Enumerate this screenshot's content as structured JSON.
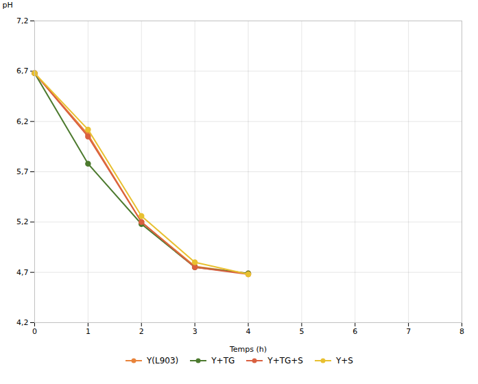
{
  "chart_data": {
    "type": "line",
    "xlabel": "Temps (h)",
    "ylabel": "pH",
    "x": [
      0,
      1,
      2,
      3,
      4
    ],
    "series": [
      {
        "name": "Y(L903)",
        "color": "#E8833A",
        "values": [
          6.68,
          6.07,
          5.2,
          4.76,
          4.69
        ]
      },
      {
        "name": "Y+TG",
        "color": "#4C7A2E",
        "values": [
          6.68,
          5.78,
          5.18,
          4.75,
          4.69
        ]
      },
      {
        "name": "Y+TG+S",
        "color": "#D96040",
        "values": [
          6.68,
          6.05,
          5.2,
          4.75,
          4.68
        ]
      },
      {
        "name": "Y+S",
        "color": "#E8C030",
        "values": [
          6.68,
          6.12,
          5.26,
          4.8,
          4.68
        ]
      }
    ],
    "xlim": [
      0,
      8
    ],
    "ylim": [
      4.2,
      7.2
    ],
    "xticks": [
      0,
      1,
      2,
      3,
      4,
      5,
      6,
      7,
      8
    ],
    "yticks": [
      {
        "value": 4.2,
        "label": "4,2"
      },
      {
        "value": 4.7,
        "label": "4,7"
      },
      {
        "value": 5.2,
        "label": "5,2"
      },
      {
        "value": 5.7,
        "label": "5,7"
      },
      {
        "value": 6.2,
        "label": "6,2"
      },
      {
        "value": 6.7,
        "label": "6,7"
      },
      {
        "value": 7.2,
        "label": "7,2"
      }
    ],
    "marker": "circle",
    "grid": true,
    "legend": "bottom"
  }
}
